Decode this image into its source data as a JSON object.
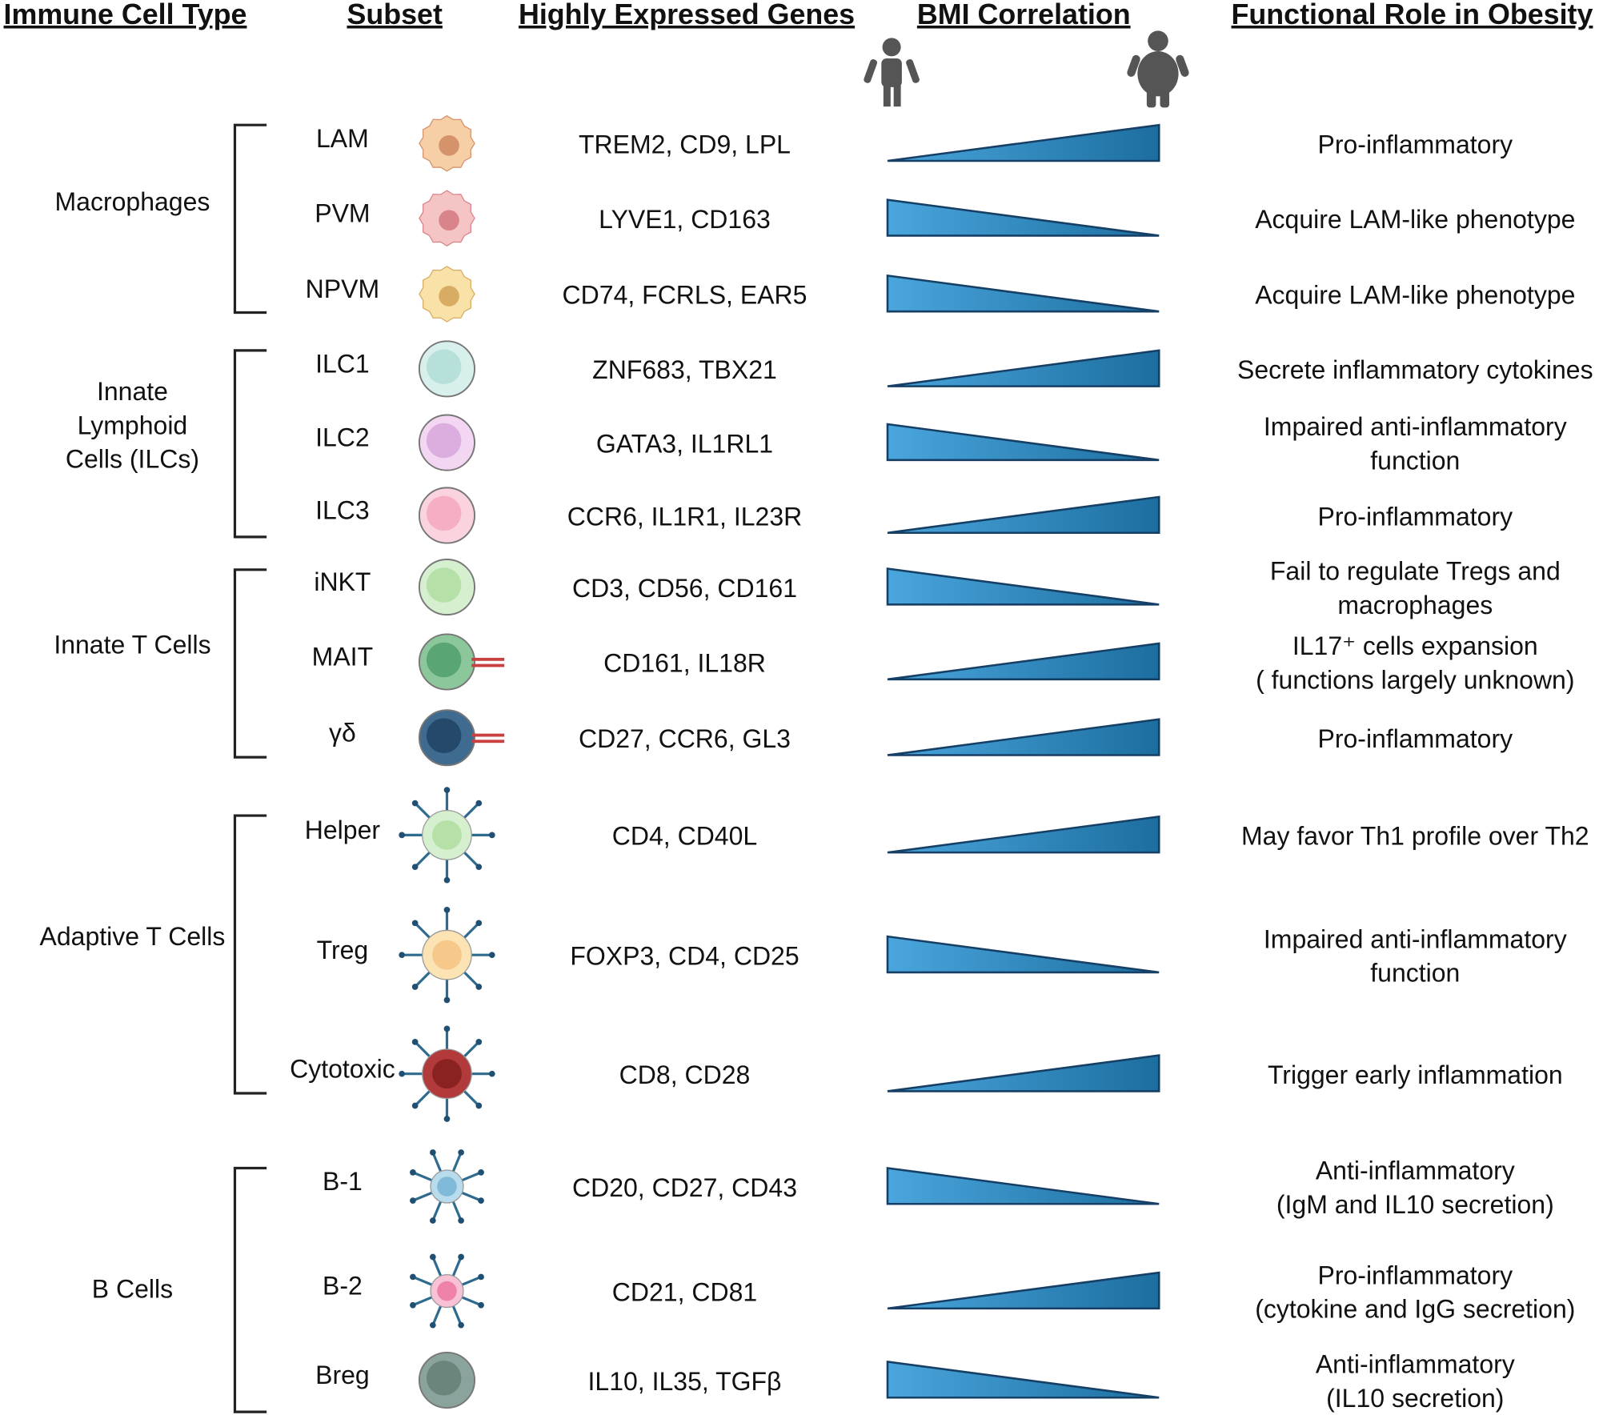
{
  "headers": [
    "Immune Cell Type",
    "Subset",
    "Highly Expressed Genes",
    "BMI Correlation",
    "Functional Role in Obesity"
  ],
  "groups": [
    {
      "label": [
        "Macrophages"
      ]
    },
    {
      "label": [
        "Innate",
        "Lymphoid",
        "Cells (ILCs)"
      ]
    },
    {
      "label": [
        "Innate T Cells"
      ]
    },
    {
      "label": [
        "Adaptive T Cells"
      ]
    },
    {
      "label": [
        "B Cells"
      ]
    }
  ],
  "rows": [
    {
      "subset": "LAM",
      "genes": "TREM2, CD9, LPL",
      "trend": "up",
      "role": [
        "Pro-inflammatory"
      ]
    },
    {
      "subset": "PVM",
      "genes": "LYVE1, CD163",
      "trend": "down",
      "role": [
        "Acquire LAM-like phenotype"
      ]
    },
    {
      "subset": "NPVM",
      "genes": "CD74, FCRLS, EAR5",
      "trend": "down",
      "role": [
        "Acquire LAM-like phenotype"
      ]
    },
    {
      "subset": "ILC1",
      "genes": "ZNF683, TBX21",
      "trend": "up",
      "role": [
        "Secrete inflammatory cytokines"
      ]
    },
    {
      "subset": "ILC2",
      "genes": "GATA3, IL1RL1",
      "trend": "down",
      "role": [
        "Impaired anti-inflammatory",
        "function"
      ]
    },
    {
      "subset": "ILC3",
      "genes": "CCR6, IL1R1, IL23R",
      "trend": "up",
      "role": [
        "Pro-inflammatory"
      ]
    },
    {
      "subset": "iNKT",
      "genes": "CD3, CD56, CD161",
      "trend": "down",
      "role": [
        "Fail to regulate Tregs and",
        "macrophages"
      ]
    },
    {
      "subset": "MAIT",
      "genes": "CD161, IL18R",
      "trend": "up",
      "role": [
        "IL17⁺ cells expansion",
        "( functions largely unknown)"
      ]
    },
    {
      "subset": "γδ",
      "genes": "CD27, CCR6, GL3",
      "trend": "up",
      "role": [
        "Pro-inflammatory"
      ]
    },
    {
      "subset": "Helper",
      "genes": "CD4, CD40L",
      "trend": "up",
      "role": [
        "May favor Th1 profile over Th2"
      ]
    },
    {
      "subset": "Treg",
      "genes": "FOXP3, CD4, CD25",
      "trend": "down",
      "role": [
        "Impaired anti-inflammatory",
        "function"
      ]
    },
    {
      "subset": "Cytotoxic",
      "genes": "CD8, CD28",
      "trend": "up",
      "role": [
        "Trigger early inflammation"
      ]
    },
    {
      "subset": "B-1",
      "genes": "CD20, CD27, CD43",
      "trend": "down",
      "role": [
        "Anti-inflammatory",
        "(IgM and IL10 secretion)"
      ]
    },
    {
      "subset": "B-2",
      "genes": "CD21, CD81",
      "trend": "up",
      "role": [
        "Pro-inflammatory",
        "(cytokine and IgG secretion)"
      ]
    },
    {
      "subset": "Breg",
      "genes": "IL10, IL35, TGFβ",
      "trend": "down",
      "role": [
        "Anti-inflammatory",
        "(IL10 secretion)"
      ]
    }
  ]
}
